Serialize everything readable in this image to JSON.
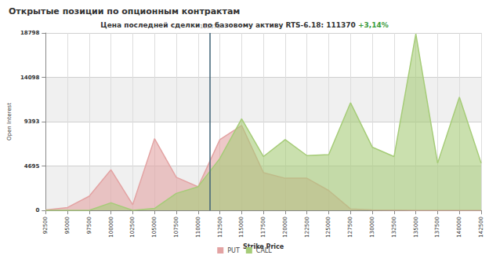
{
  "chart_data": {
    "type": "area",
    "title": "Открытые позиции по опционным контрактам",
    "subtitle": "Цена последней сделки по базовому активу RTS-6.18: 111370 +3,14%",
    "x_label": "Strike Price",
    "y_label": "Open Interest",
    "x": [
      92500,
      95000,
      97500,
      100000,
      102500,
      105000,
      107500,
      110000,
      112500,
      115000,
      117500,
      120000,
      122500,
      125000,
      127500,
      130000,
      132500,
      135000,
      137500,
      140000,
      142500
    ],
    "series": [
      {
        "name": "PUT",
        "color": "#e3a3a3",
        "values": [
          50,
          300,
          1500,
          4300,
          600,
          7600,
          3500,
          2500,
          7500,
          9000,
          4000,
          3400,
          3400,
          2100,
          150,
          50,
          30,
          0,
          0,
          0,
          0
        ]
      },
      {
        "name": "CALL",
        "color": "#a6cc78",
        "values": [
          0,
          0,
          0,
          800,
          0,
          200,
          1800,
          2500,
          5500,
          9700,
          5700,
          7500,
          5800,
          5900,
          11400,
          6700,
          5700,
          18700,
          5000,
          12000,
          5000
        ]
      }
    ],
    "xlim": [
      92500,
      142500
    ],
    "xticks": [
      92500,
      95000,
      97500,
      100000,
      102500,
      105000,
      107500,
      110000,
      112500,
      115000,
      117500,
      120000,
      122500,
      125000,
      127500,
      130000,
      132500,
      135000,
      137500,
      140000,
      142500
    ],
    "ylim": [
      0,
      18798
    ],
    "yticks": [
      0,
      4695,
      9393,
      14098,
      18798
    ],
    "vline": {
      "x": 111370,
      "label": "111370"
    },
    "annotations": [
      {
        "text": "www.rts.ru"
      }
    ],
    "grid": true,
    "legend": "bottom"
  }
}
